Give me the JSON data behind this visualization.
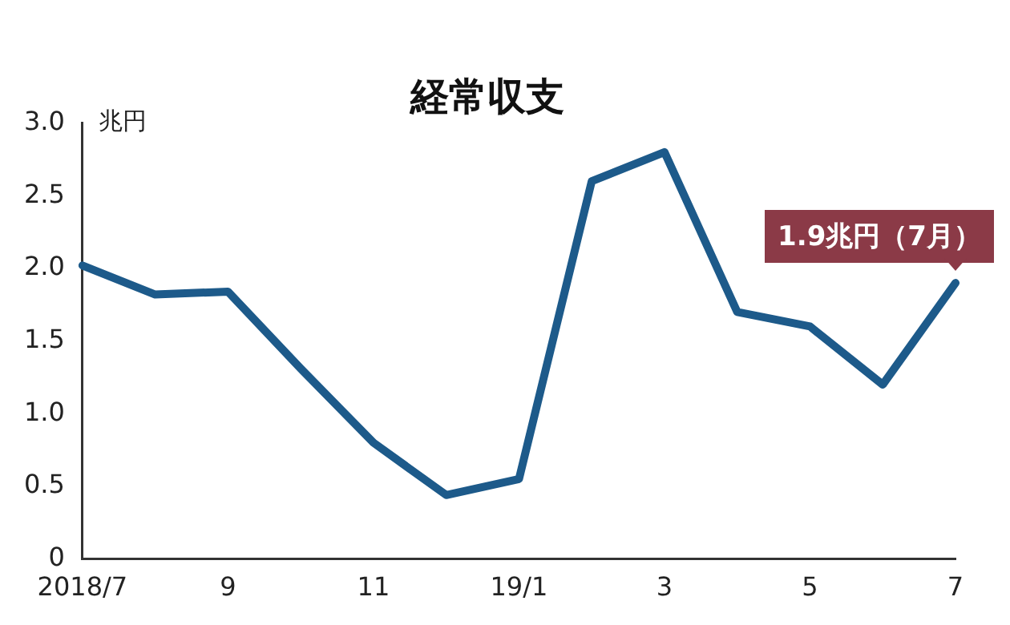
{
  "chart_data": {
    "type": "line",
    "title": "経常収支",
    "ylabel": "兆円",
    "categories": [
      "2018/7",
      null,
      "9",
      null,
      "11",
      null,
      "19/1",
      null,
      "3",
      null,
      "5",
      null,
      "7"
    ],
    "series": [
      {
        "color": "#1d5a8a",
        "values": [
          2.02,
          1.82,
          1.84,
          1.31,
          0.8,
          0.44,
          0.55,
          2.6,
          2.8,
          1.7,
          1.6,
          1.2,
          1.9
        ]
      }
    ],
    "ylim": [
      0,
      3
    ],
    "yticks": [
      0,
      {
        "value": 0.5,
        "label": "0.5"
      },
      {
        "value": 1,
        "label": "1.0"
      },
      {
        "value": 1.5,
        "label": "1.5"
      },
      {
        "value": 2,
        "label": "2.0"
      },
      {
        "value": 2.5,
        "label": "2.5"
      },
      {
        "value": 3,
        "label": "3.0"
      }
    ],
    "grid": false,
    "legend": false,
    "marker": "none",
    "line_style": "solid",
    "annotations": [
      {
        "text": "1.9兆円（7月）",
        "x": "7",
        "y": 1.9
      }
    ]
  }
}
